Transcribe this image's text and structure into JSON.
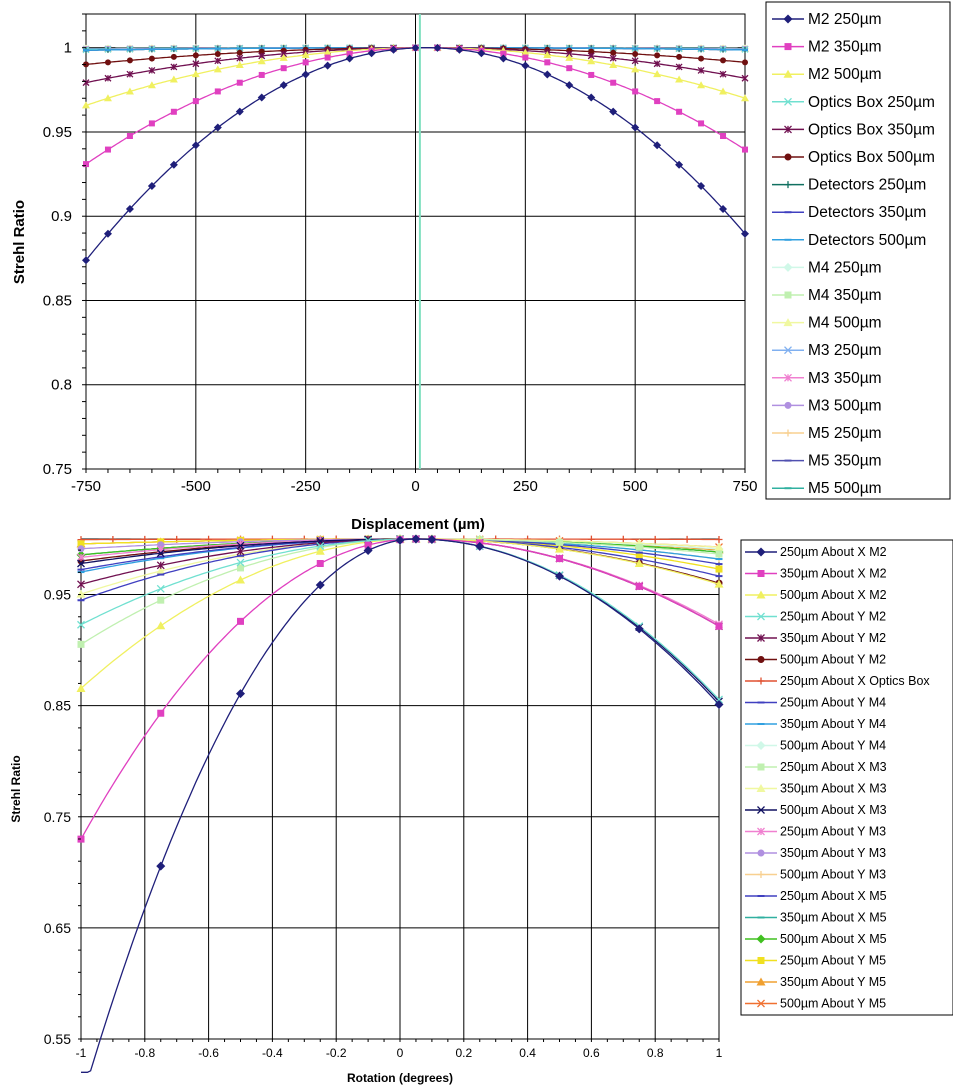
{
  "chart_data": [
    {
      "type": "line",
      "xlabel": "Displacement (µm)",
      "ylabel": "Strehl Ratio",
      "xlim": [
        -750,
        750
      ],
      "ylim": [
        0.75,
        1.02
      ],
      "x_ticks": [
        "-750",
        "-500",
        "-250",
        "0",
        "250",
        "500",
        "750"
      ],
      "y_ticks": [
        "0.75",
        "0.8",
        "0.85",
        "0.9",
        "0.95",
        "1"
      ],
      "grid": true,
      "legend_position": "right",
      "series": [
        {
          "name": "M2 250µm",
          "color": "#1f1f7a",
          "marker": "diamond",
          "k": 2.1e-07
        },
        {
          "name": "M2 350µm",
          "color": "#e040c0",
          "marker": "square",
          "k": 1.15e-07
        },
        {
          "name": "M2 500µm",
          "color": "#f0f060",
          "marker": "triangle",
          "k": 5.7e-08
        },
        {
          "name": "Optics Box 250µm",
          "color": "#70e0d0",
          "marker": "x",
          "k": 2e-09
        },
        {
          "name": "Optics Box 350µm",
          "color": "#701050",
          "marker": "star",
          "k": 3.45e-08
        },
        {
          "name": "Optics Box 500µm",
          "color": "#701010",
          "marker": "circle",
          "k": 1.65e-08
        },
        {
          "name": "Detectors 250µm",
          "color": "#107060",
          "marker": "plus",
          "k": 2.5e-09
        },
        {
          "name": "Detectors 350µm",
          "color": "#4040c0",
          "marker": "dash",
          "k": 2.5e-09
        },
        {
          "name": "Detectors 500µm",
          "color": "#30a0e0",
          "marker": "dash",
          "k": 2.5e-09
        },
        {
          "name": "M4 250µm",
          "color": "#d0f8e8",
          "marker": "diamond",
          "k": 1e-09
        },
        {
          "name": "M4 350µm",
          "color": "#c0f0b0",
          "marker": "square",
          "k": 1e-09
        },
        {
          "name": "M4 500µm",
          "color": "#f0f8a0",
          "marker": "triangle",
          "k": 1e-09
        },
        {
          "name": "M3 250µm",
          "color": "#80b0f0",
          "marker": "x",
          "k": 1.5e-09
        },
        {
          "name": "M3 350µm",
          "color": "#f080d0",
          "marker": "star",
          "k": 1.5e-09
        },
        {
          "name": "M3 500µm",
          "color": "#b090e0",
          "marker": "circle",
          "k": 1.5e-09
        },
        {
          "name": "M5 250µm",
          "color": "#f8d090",
          "marker": "plus",
          "k": 1e-09
        },
        {
          "name": "M5 350µm",
          "color": "#5050b0",
          "marker": "dash",
          "k": 1e-09
        },
        {
          "name": "M5 500µm",
          "color": "#30b0a0",
          "marker": "dash",
          "k": 1e-09
        }
      ]
    },
    {
      "type": "line",
      "xlabel": "Rotation (degrees)",
      "ylabel": "Strehl Ratio",
      "xlim": [
        -1,
        1
      ],
      "ylim": [
        0.55,
        1.0
      ],
      "x_ticks": [
        "-1",
        "-0.8",
        "-0.6",
        "-0.4",
        "-0.2",
        "0",
        "0.2",
        "0.4",
        "0.6",
        "0.8",
        "1"
      ],
      "y_ticks": [
        "0.55",
        "0.65",
        "0.75",
        "0.85",
        "0.95"
      ],
      "grid": true,
      "legend_position": "right",
      "series": [
        {
          "name": "250µm About X M2",
          "color": "#1f1f7a",
          "marker": "diamond",
          "kneg": 0.46,
          "kpos": 0.165
        },
        {
          "name": "350µm About X M2",
          "color": "#e040c0",
          "marker": "square",
          "kneg": 0.245,
          "kpos": 0.087
        },
        {
          "name": "500µm About X M2",
          "color": "#f0f060",
          "marker": "triangle",
          "kneg": 0.122,
          "kpos": 0.045
        },
        {
          "name": "250µm About Y M2",
          "color": "#70e0d0",
          "marker": "x",
          "kneg": 0.07,
          "kpos": 0.16
        },
        {
          "name": "350µm About Y M2",
          "color": "#701050",
          "marker": "star",
          "kneg": 0.037,
          "kpos": 0.087
        },
        {
          "name": "500µm About Y M2",
          "color": "#701010",
          "marker": "circle",
          "kneg": 0.018,
          "kpos": 0.044
        },
        {
          "name": "250µm About X Optics Box",
          "color": "#e05030",
          "marker": "plus",
          "kneg": 0.0005,
          "kpos": 0.0005
        },
        {
          "name": "250µm About Y M4",
          "color": "#4040c0",
          "marker": "dash",
          "kneg": 0.05,
          "kpos": 0.037
        },
        {
          "name": "350µm About Y M4",
          "color": "#30a0e0",
          "marker": "dash",
          "kneg": 0.027,
          "kpos": 0.02
        },
        {
          "name": "500µm About Y M4",
          "color": "#d0f8e8",
          "marker": "diamond",
          "kneg": 0.013,
          "kpos": 0.01
        },
        {
          "name": "250µm About X M3",
          "color": "#c0f0b0",
          "marker": "square",
          "kneg": 0.086,
          "kpos": 0.015
        },
        {
          "name": "350µm About X M3",
          "color": "#f0f8a0",
          "marker": "triangle",
          "kneg": 0.045,
          "kpos": 0.008
        },
        {
          "name": "500µm About X M3",
          "color": "#101060",
          "marker": "x",
          "kneg": 0.02,
          "kpos": 0.162
        },
        {
          "name": "250µm About Y M3",
          "color": "#f080d0",
          "marker": "star",
          "kneg": 0.015,
          "kpos": 0.085
        },
        {
          "name": "350µm About Y M3",
          "color": "#b090e0",
          "marker": "circle",
          "kneg": 0.008,
          "kpos": 0.044
        },
        {
          "name": "500µm About Y M3",
          "color": "#f8d090",
          "marker": "plus",
          "kneg": 0.004,
          "kpos": 0.02
        },
        {
          "name": "250µm About X M5",
          "color": "#4040c0",
          "marker": "dash",
          "kneg": 0.025,
          "kpos": 0.025
        },
        {
          "name": "350µm About X M5",
          "color": "#30b0a0",
          "marker": "dash",
          "kneg": 0.013,
          "kpos": 0.013
        },
        {
          "name": "500µm About X M5",
          "color": "#40c020",
          "marker": "diamond",
          "kneg": 0.013,
          "kpos": 0.013
        },
        {
          "name": "250µm About Y M5",
          "color": "#f0e020",
          "marker": "square",
          "kneg": 0.004,
          "kpos": 0.03
        },
        {
          "name": "350µm About Y M5",
          "color": "#f0a030",
          "marker": "triangle",
          "kneg": 0.004,
          "kpos": 0.011
        },
        {
          "name": "500µm About Y M5",
          "color": "#f07030",
          "marker": "x",
          "kneg": 0.004,
          "kpos": 0.008
        }
      ]
    }
  ]
}
